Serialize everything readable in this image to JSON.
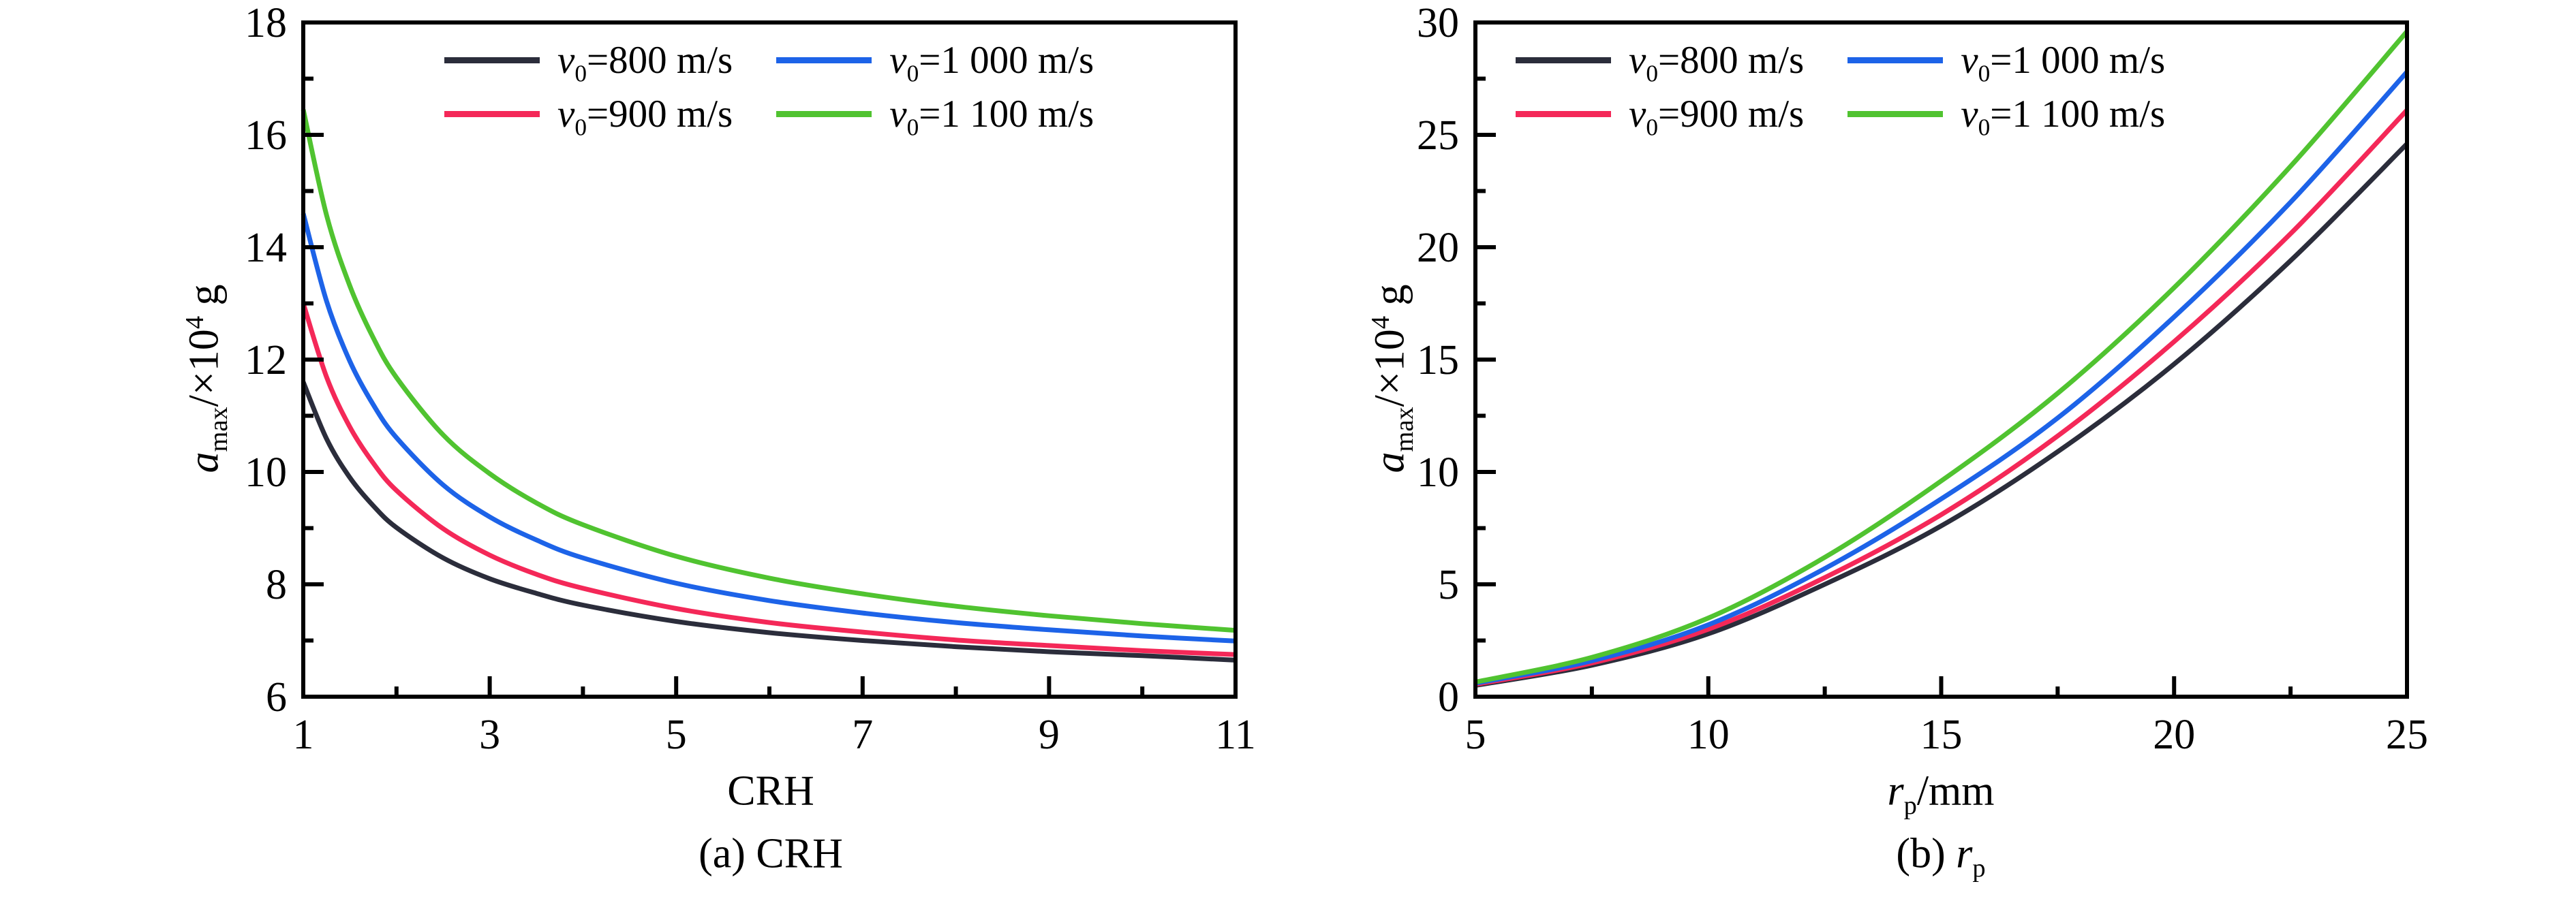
{
  "figure": {
    "background": "#ffffff",
    "frame_color": "#000000",
    "text_color": "#000000"
  },
  "labels": {
    "ylabel": {
      "var": "a",
      "sub": "max",
      "mid": "/×10",
      "sup": "4",
      "unit": " g"
    },
    "plot_a": {
      "xlabel": "CRH",
      "caption_prefix": "(a) ",
      "caption": "CRH"
    },
    "plot_b": {
      "xlabel_var": "r",
      "xlabel_sub": "p",
      "xlabel_unit": "/mm",
      "caption_prefix": "(b) ",
      "caption_var": "r",
      "caption_sub": "p"
    }
  },
  "legend": {
    "items": [
      {
        "var": "v",
        "sub": "0",
        "rest": "=800 m/s"
      },
      {
        "var": "v",
        "sub": "0",
        "rest": "=900 m/s"
      },
      {
        "var": "v",
        "sub": "0",
        "rest": "=1 000 m/s"
      },
      {
        "var": "v",
        "sub": "0",
        "rest": "=1 100 m/s"
      }
    ],
    "columns": 2
  },
  "chart_data": [
    {
      "id": "a",
      "type": "line",
      "caption": "(a) CRH",
      "xlabel": "CRH",
      "ylabel": "a_max/×10^4 g",
      "xlim": [
        1,
        11
      ],
      "ylim": [
        6,
        18
      ],
      "x_ticks": [
        1,
        3,
        5,
        7,
        9,
        11
      ],
      "y_ticks": [
        6,
        8,
        10,
        12,
        14,
        16,
        18
      ],
      "minor_ticks": "midpoints",
      "grid": false,
      "legend_position": "top-center-2col",
      "x": [
        1,
        1.25,
        1.5,
        1.75,
        2,
        2.5,
        3,
        3.5,
        4,
        5,
        6,
        7,
        8,
        9,
        10,
        11
      ],
      "series": [
        {
          "name": "v0=800 m/s",
          "color": "#2B2D3B",
          "values": [
            11.6,
            10.59,
            9.9,
            9.4,
            9.01,
            8.47,
            8.1,
            7.84,
            7.63,
            7.34,
            7.14,
            7.0,
            6.89,
            6.8,
            6.73,
            6.65
          ]
        },
        {
          "name": "v0=900 m/s",
          "color": "#F42858",
          "values": [
            13.0,
            11.69,
            10.8,
            10.16,
            9.67,
            8.99,
            8.52,
            8.18,
            7.93,
            7.57,
            7.32,
            7.15,
            7.01,
            6.91,
            6.82,
            6.75
          ]
        },
        {
          "name": "v0=1 000 m/s",
          "color": "#1D63E8",
          "values": [
            14.6,
            13.04,
            11.97,
            11.2,
            10.61,
            9.77,
            9.2,
            8.79,
            8.47,
            8.02,
            7.71,
            7.49,
            7.32,
            7.19,
            7.08,
            6.99
          ]
        },
        {
          "name": "v0=1 100 m/s",
          "color": "#50C330",
          "values": [
            16.45,
            14.57,
            13.31,
            12.39,
            11.68,
            10.66,
            9.97,
            9.45,
            9.06,
            8.5,
            8.11,
            7.83,
            7.61,
            7.44,
            7.3,
            7.18
          ]
        }
      ]
    },
    {
      "id": "b",
      "type": "line",
      "caption": "(b) rp",
      "xlabel": "rp/mm",
      "ylabel": "a_max/×10^4 g",
      "xlim": [
        5,
        25
      ],
      "ylim": [
        0,
        30
      ],
      "x_ticks": [
        5,
        10,
        15,
        20,
        25
      ],
      "y_ticks": [
        0,
        5,
        10,
        15,
        20,
        25,
        30
      ],
      "minor_ticks": "midpoints",
      "grid": false,
      "legend_position": "top-center-2col",
      "x": [
        5,
        7.5,
        10,
        12.5,
        15,
        17.5,
        20,
        22.5,
        25
      ],
      "series": [
        {
          "name": "v0=800 m/s",
          "color": "#2B2D3B",
          "values": [
            0.5,
            1.4,
            2.8,
            5.0,
            7.6,
            10.9,
            14.8,
            19.4,
            24.6
          ]
        },
        {
          "name": "v0=900 m/s",
          "color": "#F42858",
          "values": [
            0.55,
            1.5,
            3.0,
            5.3,
            8.1,
            11.6,
            15.8,
            20.6,
            26.1
          ]
        },
        {
          "name": "v0=1 000 m/s",
          "color": "#1D63E8",
          "values": [
            0.6,
            1.6,
            3.2,
            5.7,
            8.8,
            12.4,
            16.9,
            22.0,
            27.8
          ]
        },
        {
          "name": "v0=1 100 m/s",
          "color": "#50C330",
          "values": [
            0.65,
            1.75,
            3.5,
            6.2,
            9.6,
            13.5,
            18.2,
            23.6,
            29.6
          ]
        }
      ]
    }
  ]
}
